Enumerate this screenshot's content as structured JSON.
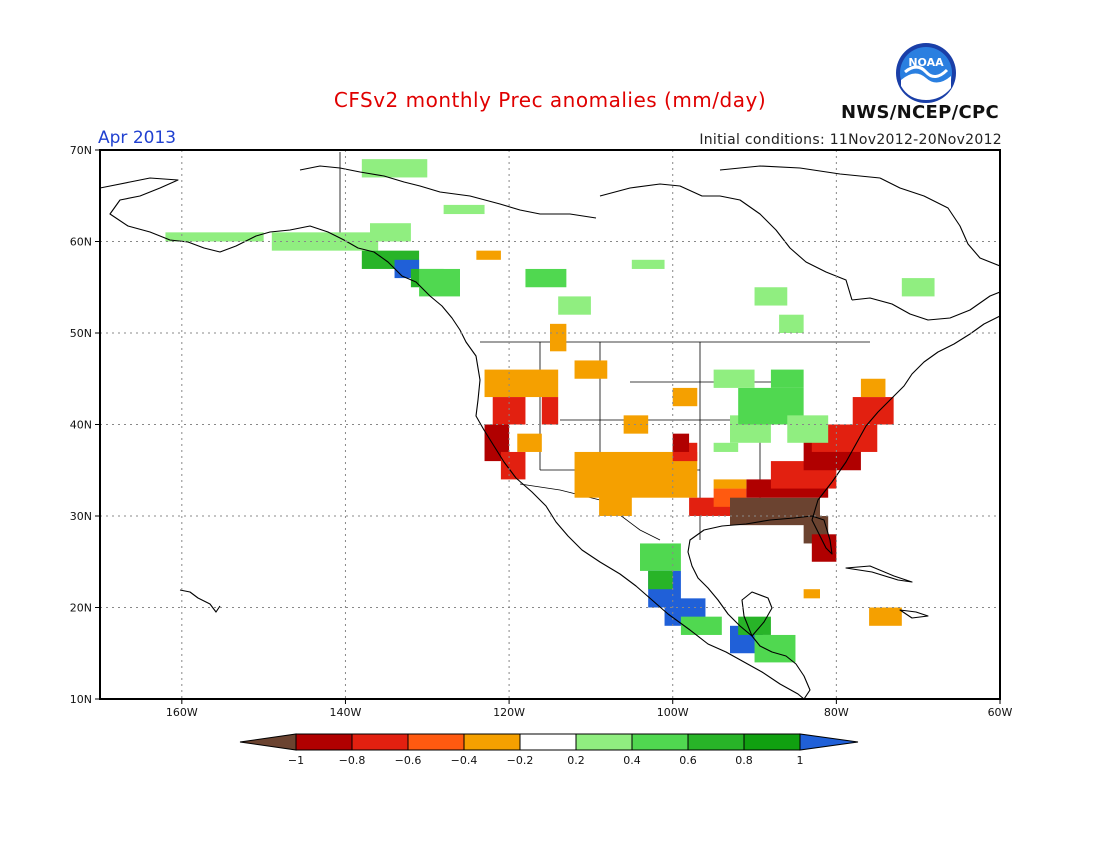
{
  "header": {
    "title": "CFSv2 monthly Prec anomalies (mm/day)",
    "valid_month": "Apr 2013",
    "initial_conditions": "Initial conditions: 11Nov2012-20Nov2012",
    "agency": "NWS/NCEP/CPC",
    "logo_text": "NOAA"
  },
  "map": {
    "lon_range": [
      -170,
      -60
    ],
    "lat_range": [
      10,
      70
    ],
    "lat_ticks": [
      "70N",
      "60N",
      "50N",
      "40N",
      "30N",
      "20N",
      "10N"
    ],
    "lon_ticks": [
      "160W",
      "140W",
      "120W",
      "100W",
      "80W",
      "60W"
    ]
  },
  "legend": {
    "colors": [
      "#6b4330",
      "#b00000",
      "#e22010",
      "#ff5a10",
      "#f5a000",
      "#ffffff",
      "#90ee80",
      "#50d850",
      "#28b428",
      "#10a010",
      "#2060d8"
    ],
    "labels": [
      "-1",
      "-0.8",
      "-0.6",
      "-0.4",
      "-0.2",
      "0.2",
      "0.4",
      "0.6",
      "0.8",
      "1"
    ]
  }
}
